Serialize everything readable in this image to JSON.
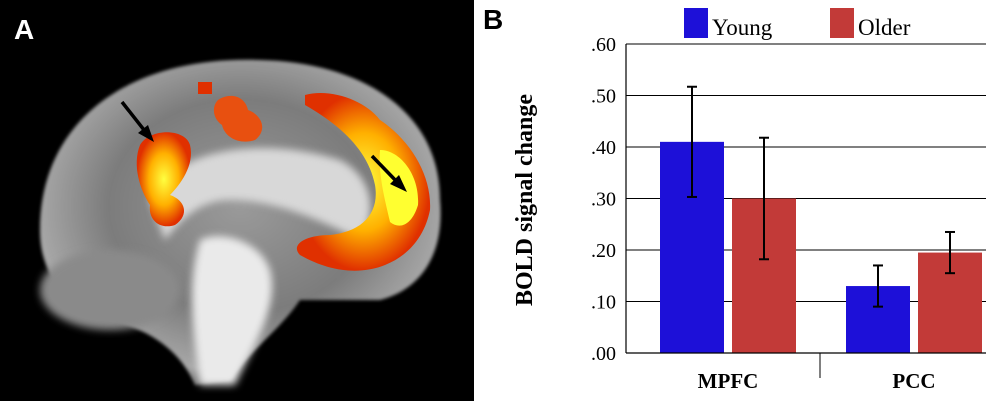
{
  "panels": {
    "a_label": "A",
    "b_label": "B"
  },
  "brain_image": {
    "description_icon": "brain-mri-sagittal-activation-icon"
  },
  "chart_data": {
    "type": "bar",
    "categories": [
      "MPFC",
      "PCC"
    ],
    "series": [
      {
        "name": "Young",
        "color": "#1d10d8",
        "values": [
          0.41,
          0.13
        ],
        "errors": [
          0.107,
          0.04
        ]
      },
      {
        "name": "Older",
        "color": "#c23a38",
        "values": [
          0.3,
          0.195
        ],
        "errors": [
          0.118,
          0.04
        ]
      }
    ],
    "ylabel": "BOLD signal change",
    "ylim": [
      0,
      0.6
    ],
    "yticks": [
      ".00",
      ".10",
      ".20",
      ".30",
      ".40",
      ".50",
      ".60"
    ],
    "ytick_values": [
      0,
      0.1,
      0.2,
      0.3,
      0.4,
      0.5,
      0.6
    ],
    "legend_placement": "top",
    "grid": true
  }
}
